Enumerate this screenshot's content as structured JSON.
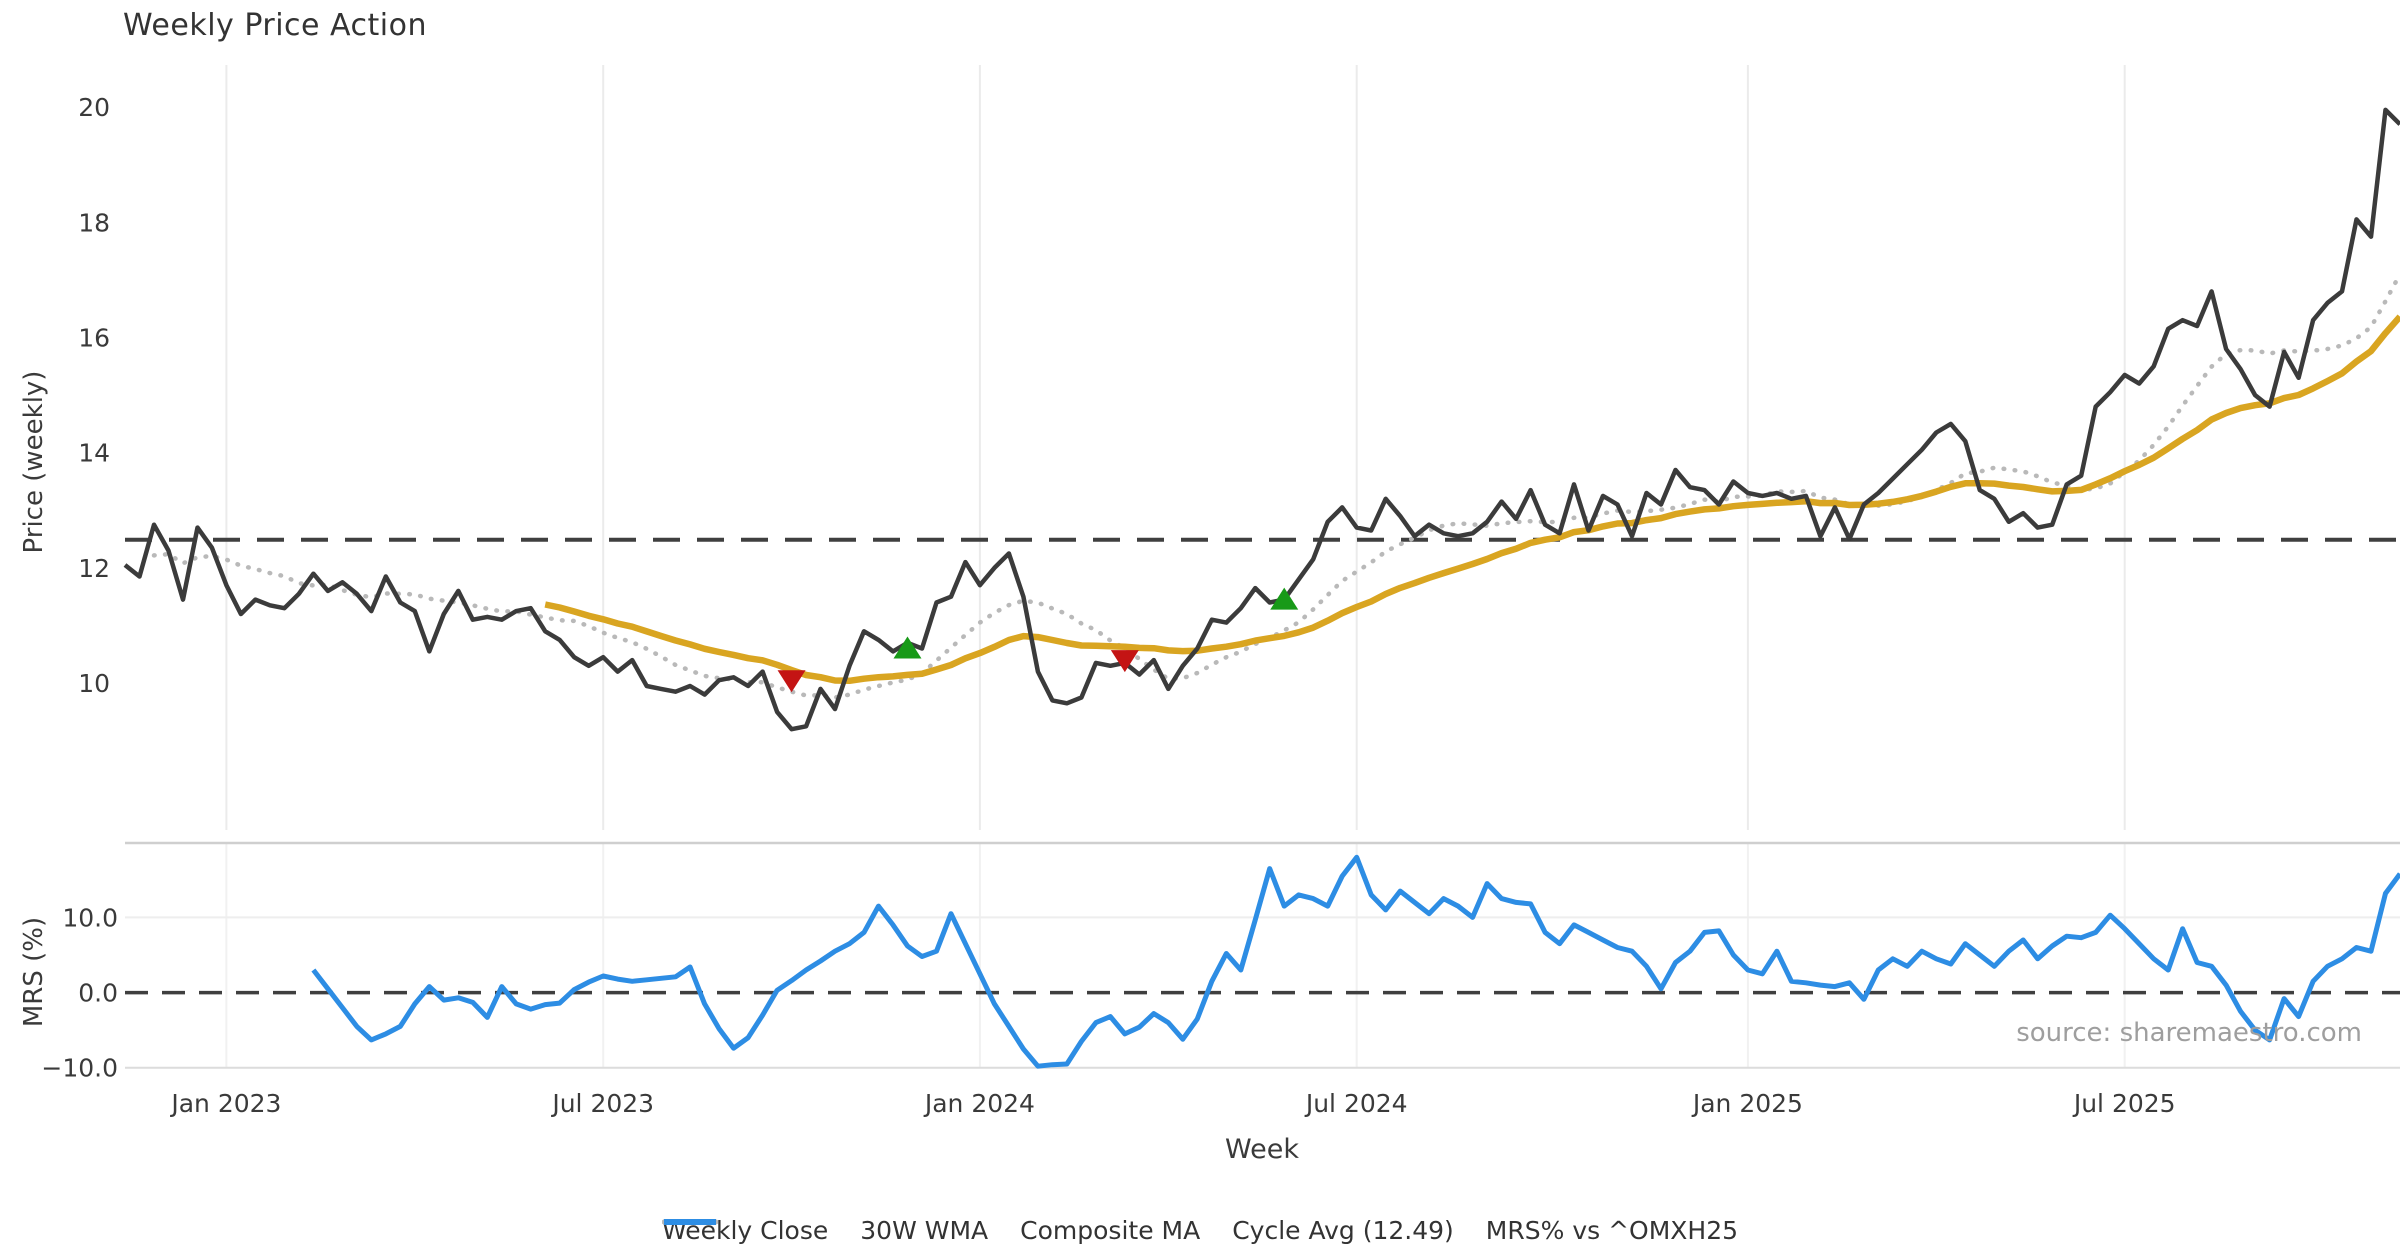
{
  "title": "Weekly Price Action",
  "source_note": "source: sharemaestro.com",
  "colors": {
    "close": "#3b3b3b",
    "wma": "#d9a521",
    "composite": "#b9b9b9",
    "cycle": "#3f3f3f",
    "mrs": "#2d8de4",
    "buy": "#189a18",
    "sell": "#c41414",
    "grid": "#ebebeb",
    "spine": "#cfcfcf",
    "tick_text": "#3a3a3a"
  },
  "legend": [
    {
      "label": "Weekly Close",
      "color": "#3b3b3b",
      "style": "solid"
    },
    {
      "label": "30W WMA",
      "color": "#d9a521",
      "style": "solid"
    },
    {
      "label": "Composite MA",
      "color": "#b9b9b9",
      "style": "dotted"
    },
    {
      "label": "Cycle Avg (12.49)",
      "color": "#4a4a4a",
      "style": "dashed"
    },
    {
      "label": "MRS% vs ^OMXH25",
      "color": "#2d8de4",
      "style": "solid"
    }
  ],
  "chart_data": [
    {
      "type": "line",
      "panel": "price",
      "title": "Weekly Price Action",
      "ylabel": "Price (weekly)",
      "xlabel": "Week",
      "ylim": [
        7.45,
        20.73
      ],
      "y_ticks": [
        10,
        12,
        14,
        16,
        18,
        20
      ],
      "x_tick_weeks": [
        7,
        33,
        59,
        85,
        112,
        138
      ],
      "x_tick_labels": [
        "Jan 2023",
        "Jul 2023",
        "Jan 2024",
        "Jul 2024",
        "Jan 2025",
        "Jul 2025"
      ],
      "cycle_avg": 12.49,
      "grid": "vertical",
      "series": [
        {
          "name": "Weekly Close",
          "values": [
            12.05,
            11.85,
            12.75,
            12.3,
            11.45,
            12.7,
            12.35,
            11.7,
            11.2,
            11.45,
            11.35,
            11.3,
            11.55,
            11.9,
            11.6,
            11.75,
            11.55,
            11.25,
            11.85,
            11.4,
            11.25,
            10.55,
            11.2,
            11.6,
            11.1,
            11.15,
            11.1,
            11.25,
            11.3,
            10.9,
            10.75,
            10.45,
            10.3,
            10.45,
            10.2,
            10.4,
            9.95,
            9.9,
            9.85,
            9.95,
            9.8,
            10.05,
            10.1,
            9.95,
            10.2,
            9.5,
            9.2,
            9.25,
            9.9,
            9.55,
            10.3,
            10.9,
            10.75,
            10.55,
            10.7,
            10.6,
            11.4,
            11.5,
            12.1,
            11.7,
            12.0,
            12.25,
            11.5,
            10.2,
            9.7,
            9.65,
            9.75,
            10.35,
            10.3,
            10.35,
            10.15,
            10.4,
            9.9,
            10.3,
            10.6,
            11.1,
            11.05,
            11.3,
            11.65,
            11.4,
            11.45,
            11.8,
            12.15,
            12.8,
            13.05,
            12.7,
            12.65,
            13.2,
            12.9,
            12.55,
            12.75,
            12.6,
            12.55,
            12.6,
            12.8,
            13.15,
            12.85,
            13.35,
            12.75,
            12.6,
            13.45,
            12.65,
            13.25,
            13.1,
            12.55,
            13.3,
            13.1,
            13.7,
            13.4,
            13.35,
            13.1,
            13.5,
            13.3,
            13.25,
            13.3,
            13.2,
            13.25,
            12.55,
            13.05,
            12.5,
            13.1,
            13.3,
            13.55,
            13.8,
            14.05,
            14.35,
            14.5,
            14.2,
            13.35,
            13.2,
            12.8,
            12.95,
            12.7,
            12.75,
            13.45,
            13.6,
            14.8,
            15.05,
            15.35,
            15.2,
            15.5,
            16.15,
            16.3,
            16.2,
            16.8,
            15.8,
            15.45,
            15.0,
            14.8,
            15.75,
            15.3,
            16.3,
            16.6,
            16.8,
            18.05,
            17.75,
            19.95,
            19.7
          ]
        },
        {
          "name": "30W WMA",
          "derived_from": "Weekly Close",
          "method": "wma",
          "window": 30
        },
        {
          "name": "Composite MA",
          "derived_from": "Weekly Close",
          "method": "sma",
          "window": 10,
          "min_window": 3
        }
      ],
      "signals": {
        "buy": [
          {
            "week": 54,
            "price": 10.6
          },
          {
            "week": 80,
            "price": 11.45
          }
        ],
        "sell": [
          {
            "week": 46,
            "price": 10.05
          },
          {
            "week": 69,
            "price": 10.4
          }
        ]
      }
    },
    {
      "type": "line",
      "panel": "mrs",
      "ylabel": "MRS (%)",
      "ylim": [
        -10.1,
        19.9
      ],
      "y_ticks": [
        10,
        0,
        -10
      ],
      "y_tick_labels": [
        "10.0",
        "0.0",
        "−10.0"
      ],
      "zero_line": 0.0,
      "series": [
        {
          "name": "MRS% vs ^OMXH25",
          "start_week": 13,
          "values": [
            3.0,
            0.5,
            -2.0,
            -4.5,
            -6.3,
            -5.5,
            -4.5,
            -1.5,
            0.8,
            -1.0,
            -0.7,
            -1.3,
            -3.3,
            0.8,
            -1.5,
            -2.2,
            -1.6,
            -1.4,
            0.4,
            1.4,
            2.2,
            1.8,
            1.5,
            1.7,
            1.9,
            2.1,
            3.4,
            -1.5,
            -4.8,
            -7.4,
            -6.0,
            -3.0,
            0.3,
            1.6,
            3.0,
            4.2,
            5.5,
            6.5,
            8.0,
            11.5,
            9.0,
            6.2,
            4.8,
            5.5,
            10.5,
            6.5,
            2.5,
            -1.5,
            -4.5,
            -7.5,
            -9.8,
            -9.6,
            -9.5,
            -6.5,
            -4.0,
            -3.2,
            -5.5,
            -4.6,
            -2.8,
            -4.0,
            -6.2,
            -3.5,
            1.5,
            5.2,
            3.0,
            9.7,
            16.5,
            11.5,
            13.0,
            12.5,
            11.5,
            15.5,
            18.0,
            13.0,
            11.0,
            13.5,
            12.0,
            10.5,
            12.5,
            11.5,
            10.0,
            14.5,
            12.5,
            12.0,
            11.8,
            8.0,
            6.5,
            9.0,
            8.0,
            7.0,
            6.0,
            5.5,
            3.5,
            0.5,
            4.0,
            5.5,
            8.0,
            8.2,
            5.0,
            3.0,
            2.5,
            5.5,
            1.5,
            1.3,
            1.0,
            0.8,
            1.3,
            -0.9,
            3.0,
            4.5,
            3.5,
            5.5,
            4.5,
            3.8,
            6.5,
            5.0,
            3.5,
            5.5,
            7.0,
            4.5,
            6.2,
            7.5,
            7.3,
            8.0,
            10.3,
            8.5,
            6.5,
            4.5,
            3.0,
            8.5,
            4.0,
            3.5,
            1.0,
            -2.5,
            -5.0,
            -6.3,
            -0.8,
            -3.2,
            1.5,
            3.5,
            4.5,
            6.0,
            5.5,
            13.2,
            15.8
          ]
        }
      ]
    }
  ]
}
